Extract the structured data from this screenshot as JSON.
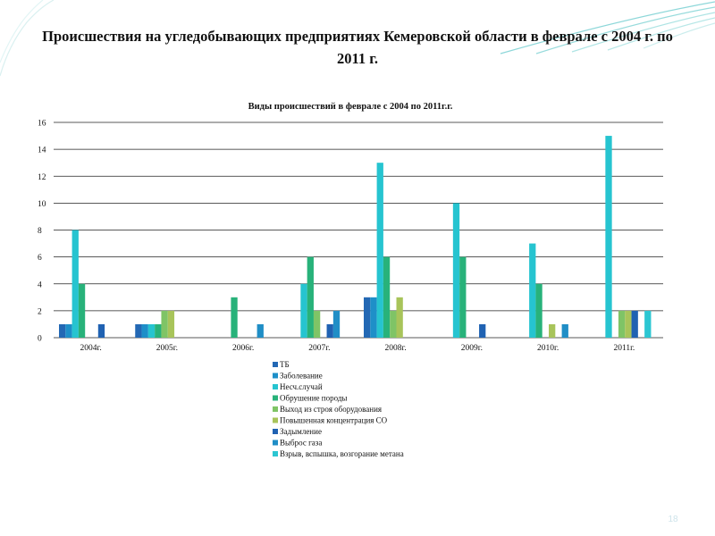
{
  "slide": {
    "title": "Происшествия на угледобывающих предприятиях Кемеровской области в феврале с 2004 г. по 2011 г.",
    "page_number": "18"
  },
  "colors": {
    "decoration": "#2fb7b9",
    "grid": "#222222",
    "text": "#111111"
  },
  "chart_data": {
    "type": "bar",
    "title": "Виды происшествий в феврале с 2004 по 2011г.г.",
    "xlabel": "",
    "ylabel": "",
    "ylim": [
      0,
      16
    ],
    "yticks": [
      "0",
      "2",
      "4",
      "6",
      "8",
      "10",
      "12",
      "14",
      "16"
    ],
    "grid": true,
    "legend_position": "bottom",
    "categories": [
      "2004г.",
      "2005г.",
      "2006г.",
      "2007г.",
      "2008г.",
      "2009г.",
      "2010г.",
      "2011г."
    ],
    "series": [
      {
        "name": "ТБ",
        "color": "#2368b4",
        "values": [
          1,
          1,
          0,
          0,
          3,
          0,
          0,
          0
        ]
      },
      {
        "name": "Заболевание",
        "color": "#1e8fc8",
        "values": [
          1,
          1,
          0,
          0,
          3,
          0,
          0,
          0
        ]
      },
      {
        "name": "Несч.случай",
        "color": "#26c4d0",
        "values": [
          8,
          1,
          0,
          4,
          13,
          10,
          7,
          15
        ]
      },
      {
        "name": "Обрушение породы",
        "color": "#28b27a",
        "values": [
          4,
          1,
          3,
          6,
          6,
          6,
          4,
          0
        ]
      },
      {
        "name": "Выход из строя оборудования",
        "color": "#7fc466",
        "values": [
          0,
          2,
          0,
          2,
          2,
          0,
          0,
          2
        ]
      },
      {
        "name": "Повышенная концентрация СО",
        "color": "#a8c45a",
        "values": [
          0,
          2,
          0,
          0,
          3,
          0,
          1,
          2
        ]
      },
      {
        "name": "Задымление",
        "color": "#2062b2",
        "values": [
          1,
          0,
          0,
          1,
          0,
          1,
          0,
          2
        ]
      },
      {
        "name": "Выброс газа",
        "color": "#208ec6",
        "values": [
          0,
          0,
          1,
          2,
          0,
          0,
          1,
          0
        ]
      },
      {
        "name": "Взрыв, вспышка, возгорание метана",
        "color": "#2cc6d2",
        "values": [
          0,
          0,
          0,
          0,
          0,
          0,
          0,
          2
        ]
      }
    ]
  }
}
